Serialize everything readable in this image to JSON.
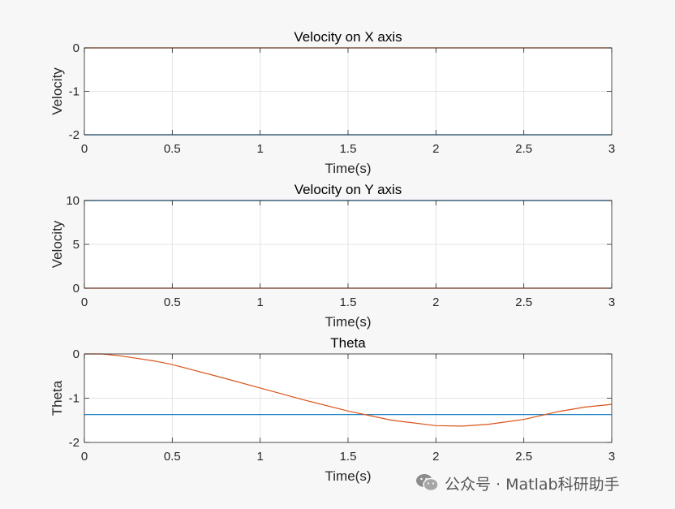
{
  "colors": {
    "blue": "#0072bd",
    "orange": "#d95319",
    "grid": "#e3e3e3",
    "axis": "#262626",
    "plot_bg": "#ffffff",
    "figure_bg": "#f7f7f7"
  },
  "watermark": {
    "text": "公众号 · Matlab科研助手",
    "logo_icon": "wechat-icon"
  },
  "chart_data": [
    {
      "type": "line",
      "title": "Velocity on X axis",
      "xlabel": "Time(s)",
      "ylabel": "Velocity",
      "xlim": [
        0,
        3
      ],
      "ylim": [
        -2,
        0
      ],
      "xticks": [
        0,
        0.5,
        1,
        1.5,
        2,
        2.5,
        3
      ],
      "xtick_labels": [
        "0",
        "0.5",
        "1",
        "1.5",
        "2",
        "2.5",
        "3"
      ],
      "yticks": [
        -2,
        -1,
        0
      ],
      "ytick_labels": [
        "-2",
        "-1",
        "0"
      ],
      "grid": true,
      "series": [
        {
          "color": "#0072bd",
          "x": [
            0,
            3
          ],
          "y": [
            -2,
            -2
          ]
        },
        {
          "color": "#d95319",
          "x": [
            0,
            3
          ],
          "y": [
            0,
            0
          ]
        }
      ]
    },
    {
      "type": "line",
      "title": "Velocity on Y axis",
      "xlabel": "Time(s)",
      "ylabel": "Velocity",
      "xlim": [
        0,
        3
      ],
      "ylim": [
        0,
        10
      ],
      "xticks": [
        0,
        0.5,
        1,
        1.5,
        2,
        2.5,
        3
      ],
      "xtick_labels": [
        "0",
        "0.5",
        "1",
        "1.5",
        "2",
        "2.5",
        "3"
      ],
      "yticks": [
        0,
        5,
        10
      ],
      "ytick_labels": [
        "0",
        "5",
        "10"
      ],
      "grid": true,
      "series": [
        {
          "color": "#0072bd",
          "x": [
            0,
            3
          ],
          "y": [
            10,
            10
          ]
        },
        {
          "color": "#d95319",
          "x": [
            0,
            3
          ],
          "y": [
            0,
            0
          ]
        }
      ]
    },
    {
      "type": "line",
      "title": "Theta",
      "xlabel": "Time(s)",
      "ylabel": "Theta",
      "xlim": [
        0,
        3
      ],
      "ylim": [
        -2,
        0
      ],
      "xticks": [
        0,
        0.5,
        1,
        1.5,
        2,
        2.5,
        3
      ],
      "xtick_labels": [
        "0",
        "0.5",
        "1",
        "1.5",
        "2",
        "2.5",
        "3"
      ],
      "yticks": [
        -2,
        -1,
        0
      ],
      "ytick_labels": [
        "-2",
        "-1",
        "0"
      ],
      "grid": true,
      "series": [
        {
          "color": "#0072bd",
          "x": [
            0,
            3
          ],
          "y": [
            -1.37,
            -1.37
          ]
        },
        {
          "color": "#d95319",
          "x": [
            0,
            0.1,
            0.2,
            0.3,
            0.4,
            0.5,
            0.75,
            1.0,
            1.25,
            1.5,
            1.75,
            2.0,
            2.15,
            2.3,
            2.5,
            2.7,
            2.85,
            3.0
          ],
          "y": [
            0,
            0,
            -0.04,
            -0.1,
            -0.16,
            -0.24,
            -0.5,
            -0.77,
            -1.04,
            -1.29,
            -1.5,
            -1.62,
            -1.63,
            -1.59,
            -1.48,
            -1.3,
            -1.2,
            -1.14
          ]
        }
      ]
    }
  ]
}
